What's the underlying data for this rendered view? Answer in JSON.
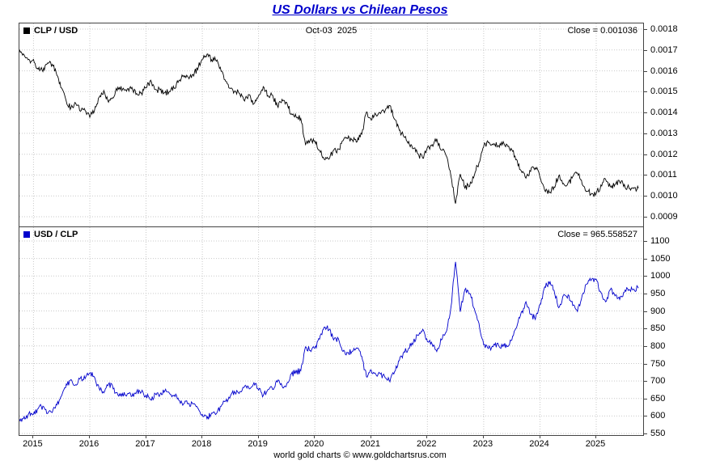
{
  "page": {
    "title": "US Dollars vs Chilean Pesos",
    "footer": "world gold charts © www.goldchartsrus.com"
  },
  "chart_data": [
    {
      "type": "line",
      "legend": "CLP / USD",
      "date_label": "Oct-03  2025",
      "close_label": "Close = 0.001036",
      "close_value": 0.001036,
      "line_color": "#000000",
      "ylim": [
        0.0009,
        0.0018
      ],
      "yticks": [
        "0.0018",
        "0.0017",
        "0.0016",
        "0.0015",
        "0.0014",
        "0.0013",
        "0.0012",
        "0.0011",
        "0.0010",
        "0.0009"
      ],
      "x_years": [
        2015,
        2016,
        2017,
        2018,
        2019,
        2020,
        2021,
        2022,
        2023,
        2024,
        2025
      ],
      "x_start": 2014.75,
      "x_step_months": 1,
      "grid": true,
      "legend_position": "top-left",
      "values": [
        0.0017,
        0.00168,
        0.00165,
        0.00165,
        0.00161,
        0.0016,
        0.00164,
        0.00163,
        0.00158,
        0.00152,
        0.00145,
        0.00142,
        0.00145,
        0.00141,
        0.00141,
        0.00138,
        0.00141,
        0.00147,
        0.0015,
        0.00145,
        0.00147,
        0.00152,
        0.00151,
        0.00151,
        0.00152,
        0.00149,
        0.00149,
        0.00152,
        0.00155,
        0.00151,
        0.00151,
        0.00149,
        0.0015,
        0.00152,
        0.00155,
        0.00158,
        0.00157,
        0.00158,
        0.00161,
        0.00166,
        0.00168,
        0.00165,
        0.00165,
        0.0016,
        0.00155,
        0.00152,
        0.0015,
        0.00149,
        0.00146,
        0.00148,
        0.00144,
        0.00148,
        0.00152,
        0.00148,
        0.00148,
        0.00143,
        0.00146,
        0.00145,
        0.00139,
        0.00138,
        0.00137,
        0.00125,
        0.00127,
        0.00126,
        0.00122,
        0.00117,
        0.00118,
        0.00122,
        0.00122,
        0.00127,
        0.00128,
        0.00127,
        0.00126,
        0.0013,
        0.0014,
        0.00137,
        0.00139,
        0.00139,
        0.00141,
        0.00143,
        0.00137,
        0.00132,
        0.00128,
        0.00126,
        0.00123,
        0.0012,
        0.00118,
        0.00123,
        0.00124,
        0.00127,
        0.00122,
        0.00119,
        0.0011,
        0.00096,
        0.00111,
        0.00104,
        0.00105,
        0.0011,
        0.00116,
        0.00124,
        0.00126,
        0.00125,
        0.00124,
        0.00125,
        0.00125,
        0.00122,
        0.00117,
        0.00112,
        0.00108,
        0.00112,
        0.00114,
        0.00109,
        0.00103,
        0.00102,
        0.00104,
        0.0011,
        0.00106,
        0.00106,
        0.00109,
        0.00111,
        0.00106,
        0.00102,
        0.00101,
        0.00101,
        0.00105,
        0.00108,
        0.00104,
        0.00106,
        0.00107,
        0.00105,
        0.00104,
        0.00104,
        0.001036
      ]
    },
    {
      "type": "line",
      "legend": "USD / CLP",
      "close_label": "Close = 965.558527",
      "close_value": 965.558527,
      "line_color": "#0000cc",
      "ylim": [
        550,
        1100
      ],
      "yticks": [
        "1100",
        "1050",
        "1000",
        "950",
        "900",
        "850",
        "800",
        "750",
        "700",
        "650",
        "600",
        "550"
      ],
      "x_years": [
        2015,
        2016,
        2017,
        2018,
        2019,
        2020,
        2021,
        2022,
        2023,
        2024,
        2025
      ],
      "x_start": 2014.75,
      "x_step_months": 1,
      "grid": true,
      "legend_position": "top-left",
      "values": [
        588,
        595,
        606,
        606,
        621,
        625,
        610,
        613,
        633,
        658,
        690,
        704,
        690,
        709,
        709,
        725,
        709,
        680,
        667,
        690,
        680,
        658,
        662,
        662,
        658,
        671,
        671,
        658,
        645,
        662,
        662,
        671,
        667,
        658,
        645,
        633,
        637,
        633,
        621,
        602,
        595,
        606,
        606,
        625,
        645,
        658,
        667,
        671,
        685,
        676,
        694,
        676,
        658,
        676,
        676,
        699,
        685,
        690,
        719,
        725,
        730,
        800,
        787,
        794,
        820,
        855,
        847,
        820,
        820,
        787,
        781,
        787,
        794,
        769,
        714,
        730,
        719,
        719,
        709,
        699,
        730,
        758,
        781,
        794,
        813,
        833,
        847,
        813,
        806,
        787,
        820,
        840,
        909,
        1040,
        901,
        962,
        952,
        909,
        862,
        806,
        794,
        800,
        806,
        800,
        800,
        820,
        855,
        893,
        926,
        893,
        877,
        917,
        971,
        980,
        962,
        909,
        943,
        943,
        917,
        901,
        943,
        980,
        990,
        990,
        952,
        926,
        962,
        943,
        935,
        952,
        962,
        962,
        965.558527
      ]
    }
  ]
}
